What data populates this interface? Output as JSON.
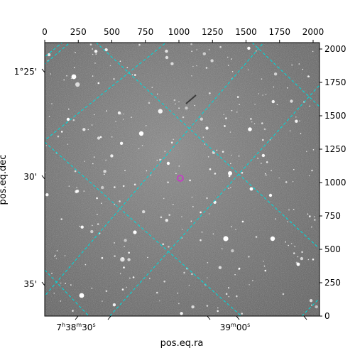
{
  "x_axis_label": "pos.eq.ra",
  "y_axis_label": "pos.eq.dec",
  "pixel_axes": {
    "top_ticks": [
      "0",
      "250",
      "500",
      "750",
      "1000",
      "1250",
      "1500",
      "1750",
      "2000"
    ],
    "right_ticks": [
      "0",
      "250",
      "500",
      "750",
      "1000",
      "1250",
      "1500",
      "1750",
      "2000"
    ]
  },
  "world_axes": {
    "ra_ticks": [
      {
        "h": "7",
        "m": "38",
        "s": "30"
      },
      {
        "h": "",
        "m": "39",
        "s": "00"
      }
    ],
    "dec_ticks": [
      "1°25'",
      "30'",
      "35'"
    ]
  },
  "colors": {
    "grid": "#00d8d8",
    "marker": "#cc33cc",
    "frame": "#000000",
    "sky_background": "#7a7a7a"
  }
}
